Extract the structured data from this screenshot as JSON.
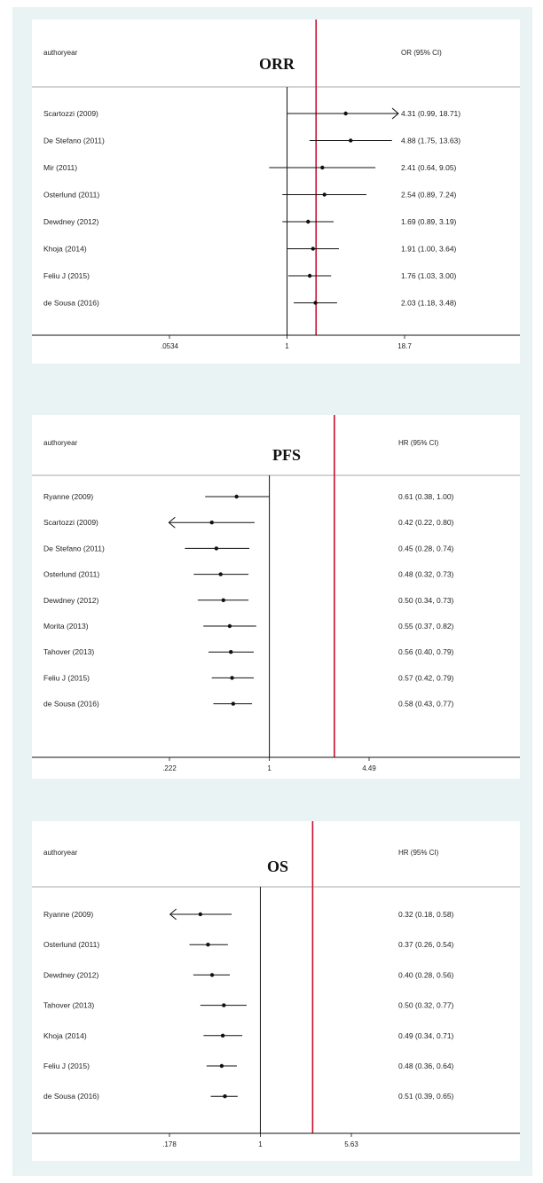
{
  "colors": {
    "background": "#e9f3f3",
    "panel": "#ffffff",
    "reference_line": "#c8102e",
    "ink": "#111111"
  },
  "chart_data": [
    {
      "type": "forest",
      "title": "ORR",
      "study_header": "authoryear",
      "effect_header": "OR (95% CI)",
      "log_scale": true,
      "xlim": [
        0.0534,
        18.7
      ],
      "xticks": [
        ".0534",
        "1",
        "18.7"
      ],
      "null_line": 1,
      "reference_line": 2.06,
      "rows": [
        {
          "study": "Scartozzi (2009)",
          "est": 4.31,
          "lo": 0.99,
          "hi": 18.71,
          "label": "4.31 (0.99, 18.71)",
          "arrow": "right"
        },
        {
          "study": "De Stefano (2011)",
          "est": 4.88,
          "lo": 1.75,
          "hi": 13.63,
          "label": "4.88 (1.75, 13.63)",
          "arrow": ""
        },
        {
          "study": "Mir (2011)",
          "est": 2.41,
          "lo": 0.64,
          "hi": 9.05,
          "label": "2.41 (0.64, 9.05)",
          "arrow": ""
        },
        {
          "study": "Osterlund (2011)",
          "est": 2.54,
          "lo": 0.89,
          "hi": 7.24,
          "label": "2.54 (0.89, 7.24)",
          "arrow": ""
        },
        {
          "study": "Dewdney (2012)",
          "est": 1.69,
          "lo": 0.89,
          "hi": 3.19,
          "label": "1.69 (0.89, 3.19)",
          "arrow": ""
        },
        {
          "study": "Khoja (2014)",
          "est": 1.91,
          "lo": 1.0,
          "hi": 3.64,
          "label": "1.91 (1.00, 3.64)",
          "arrow": ""
        },
        {
          "study": "Feliu J (2015)",
          "est": 1.76,
          "lo": 1.03,
          "hi": 3.0,
          "label": "1.76 (1.03, 3.00)",
          "arrow": ""
        },
        {
          "study": "de Sousa (2016)",
          "est": 2.03,
          "lo": 1.18,
          "hi": 3.48,
          "label": "2.03 (1.18, 3.48)",
          "arrow": ""
        }
      ]
    },
    {
      "type": "forest",
      "title": "PFS",
      "study_header": "authoryear",
      "effect_header": "HR (95% CI)",
      "log_scale": true,
      "xlim": [
        0.222,
        4.49
      ],
      "xticks": [
        ".222",
        "1",
        "4.49"
      ],
      "null_line": 1,
      "reference_line": 2.66,
      "rows": [
        {
          "study": "Ryanne (2009)",
          "est": 0.61,
          "lo": 0.38,
          "hi": 1.0,
          "label": "0.61 (0.38, 1.00)",
          "arrow": ""
        },
        {
          "study": "Scartozzi (2009)",
          "est": 0.42,
          "lo": 0.22,
          "hi": 0.8,
          "label": "0.42 (0.22, 0.80)",
          "arrow": "left"
        },
        {
          "study": "De Stefano (2011)",
          "est": 0.45,
          "lo": 0.28,
          "hi": 0.74,
          "label": "0.45 (0.28, 0.74)",
          "arrow": ""
        },
        {
          "study": "Osterlund (2011)",
          "est": 0.48,
          "lo": 0.32,
          "hi": 0.73,
          "label": "0.48 (0.32, 0.73)",
          "arrow": ""
        },
        {
          "study": "Dewdney (2012)",
          "est": 0.5,
          "lo": 0.34,
          "hi": 0.73,
          "label": "0.50 (0.34, 0.73)",
          "arrow": ""
        },
        {
          "study": "Morita (2013)",
          "est": 0.55,
          "lo": 0.37,
          "hi": 0.82,
          "label": "0.55 (0.37, 0.82)",
          "arrow": ""
        },
        {
          "study": "Tahover (2013)",
          "est": 0.56,
          "lo": 0.4,
          "hi": 0.79,
          "label": "0.56 (0.40, 0.79)",
          "arrow": ""
        },
        {
          "study": "Feliu J (2015)",
          "est": 0.57,
          "lo": 0.42,
          "hi": 0.79,
          "label": "0.57 (0.42, 0.79)",
          "arrow": ""
        },
        {
          "study": "de Sousa (2016)",
          "est": 0.58,
          "lo": 0.43,
          "hi": 0.77,
          "label": "0.58 (0.43, 0.77)",
          "arrow": ""
        }
      ]
    },
    {
      "type": "forest",
      "title": "OS",
      "study_header": "authoryear",
      "effect_header": "HR (95% CI)",
      "log_scale": true,
      "xlim": [
        0.178,
        5.63
      ],
      "xticks": [
        ".178",
        "1",
        "5.63"
      ],
      "null_line": 1,
      "reference_line": 2.7,
      "rows": [
        {
          "study": "Ryanne (2009)",
          "est": 0.32,
          "lo": 0.18,
          "hi": 0.58,
          "label": "0.32 (0.18, 0.58)",
          "arrow": "left"
        },
        {
          "study": "Osterlund (2011)",
          "est": 0.37,
          "lo": 0.26,
          "hi": 0.54,
          "label": "0.37 (0.26, 0.54)",
          "arrow": ""
        },
        {
          "study": "Dewdney (2012)",
          "est": 0.4,
          "lo": 0.28,
          "hi": 0.56,
          "label": "0.40 (0.28, 0.56)",
          "arrow": ""
        },
        {
          "study": "Tahover (2013)",
          "est": 0.5,
          "lo": 0.32,
          "hi": 0.77,
          "label": "0.50 (0.32, 0.77)",
          "arrow": ""
        },
        {
          "study": "Khoja (2014)",
          "est": 0.49,
          "lo": 0.34,
          "hi": 0.71,
          "label": "0.49 (0.34, 0.71)",
          "arrow": ""
        },
        {
          "study": "Feliu J (2015)",
          "est": 0.48,
          "lo": 0.36,
          "hi": 0.64,
          "label": "0.48 (0.36, 0.64)",
          "arrow": ""
        },
        {
          "study": "de Sousa (2016)",
          "est": 0.51,
          "lo": 0.39,
          "hi": 0.65,
          "label": "0.51 (0.39, 0.65)",
          "arrow": ""
        }
      ]
    }
  ]
}
